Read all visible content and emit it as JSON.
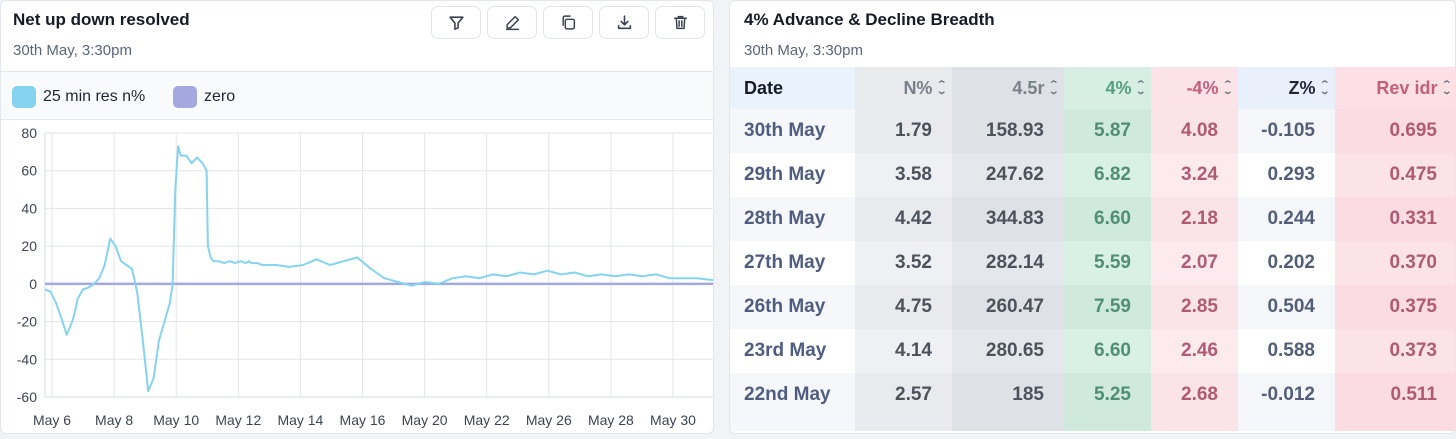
{
  "left": {
    "title": "Net up down resolved",
    "subtitle": "30th May, 3:30pm",
    "toolbar": [
      {
        "name": "filter-icon"
      },
      {
        "name": "edit-icon"
      },
      {
        "name": "copy-icon"
      },
      {
        "name": "download-icon"
      },
      {
        "name": "trash-icon"
      }
    ],
    "legend": [
      {
        "label": "25 min res n%",
        "color": "#86d3f0"
      },
      {
        "label": "zero",
        "color": "#a3a8de"
      }
    ]
  },
  "chart_data": {
    "type": "line",
    "title": "Net up down resolved",
    "xlabel": "",
    "ylabel": "",
    "ylim": [
      -60,
      80
    ],
    "yticks": [
      80,
      60,
      40,
      20,
      0,
      -20,
      -40,
      -60
    ],
    "xlim": [
      0,
      24.6
    ],
    "xtick_labels": [
      "May 6",
      "May 8",
      "May 10",
      "May 12",
      "May 14",
      "May 16",
      "May 20",
      "May 22",
      "May 26",
      "May 28",
      "May 30"
    ],
    "grid": true,
    "series": [
      {
        "name": "25 min res n%",
        "color": "#86d3f0",
        "x": [
          0,
          0.2,
          0.4,
          0.6,
          0.8,
          1.0,
          1.1,
          1.2,
          1.4,
          1.6,
          1.8,
          2.0,
          2.2,
          2.4,
          2.6,
          2.8,
          3.0,
          3.1,
          3.2,
          3.3,
          3.4,
          3.6,
          3.8,
          4.0,
          4.2,
          4.4,
          4.6,
          4.7,
          4.8,
          4.9,
          5.0,
          5.2,
          5.4,
          5.6,
          5.8,
          5.95,
          6.0,
          6.1,
          6.2,
          6.4,
          6.6,
          6.8,
          7.0,
          7.2,
          7.4,
          7.5,
          7.6,
          7.8,
          8.0,
          8.5,
          9.0,
          9.5,
          10.0,
          10.5,
          11.0,
          11.5,
          12.0,
          12.5,
          13.0,
          13.5,
          14.0,
          14.5,
          15.0,
          15.5,
          16.0,
          16.5,
          17.0,
          17.5,
          18.0,
          18.5,
          19.0,
          19.5,
          20.0,
          20.5,
          21.0,
          21.5,
          22.0,
          22.5,
          23.0,
          23.5,
          24.0,
          24.6
        ],
        "y": [
          -3,
          -4,
          -10,
          -18,
          -27,
          -20,
          -15,
          -8,
          -3,
          -2,
          0,
          3,
          10,
          24,
          20,
          12,
          10,
          9,
          8,
          2,
          -5,
          -30,
          -57,
          -50,
          -30,
          -20,
          -10,
          0,
          50,
          73,
          68,
          68,
          64,
          67,
          64,
          60,
          20,
          14,
          12,
          12,
          11,
          12,
          11,
          12,
          11,
          12,
          11,
          11,
          10,
          10,
          9,
          10,
          13,
          10,
          12,
          14,
          8,
          3,
          1,
          -1,
          1,
          0,
          3,
          4,
          3,
          5,
          4,
          6,
          5,
          7,
          5,
          6,
          4,
          5,
          4,
          5,
          4,
          5,
          3,
          3,
          3,
          2
        ]
      },
      {
        "name": "zero",
        "color": "#a3a8de",
        "x": [
          0,
          24.6
        ],
        "y": [
          0,
          0
        ]
      }
    ]
  },
  "right": {
    "title": "4% Advance & Decline Breadth",
    "subtitle": "30th May, 3:30pm",
    "columns": [
      "Date",
      "N%",
      "4.5r",
      "4%",
      "-4%",
      "Z%",
      "Rev idr"
    ],
    "rows": [
      [
        "30th May",
        "1.79",
        "158.93",
        "5.87",
        "4.08",
        "-0.105",
        "0.695"
      ],
      [
        "29th May",
        "3.58",
        "247.62",
        "6.82",
        "3.24",
        "0.293",
        "0.475"
      ],
      [
        "28th May",
        "4.42",
        "344.83",
        "6.60",
        "2.18",
        "0.244",
        "0.331"
      ],
      [
        "27th May",
        "3.52",
        "282.14",
        "5.59",
        "2.07",
        "0.202",
        "0.370"
      ],
      [
        "26th May",
        "4.75",
        "260.47",
        "7.59",
        "2.85",
        "0.504",
        "0.375"
      ],
      [
        "23rd May",
        "4.14",
        "280.65",
        "6.60",
        "2.46",
        "0.588",
        "0.373"
      ],
      [
        "22nd May",
        "2.57",
        "185",
        "5.25",
        "2.68",
        "-0.012",
        "0.511"
      ]
    ]
  }
}
